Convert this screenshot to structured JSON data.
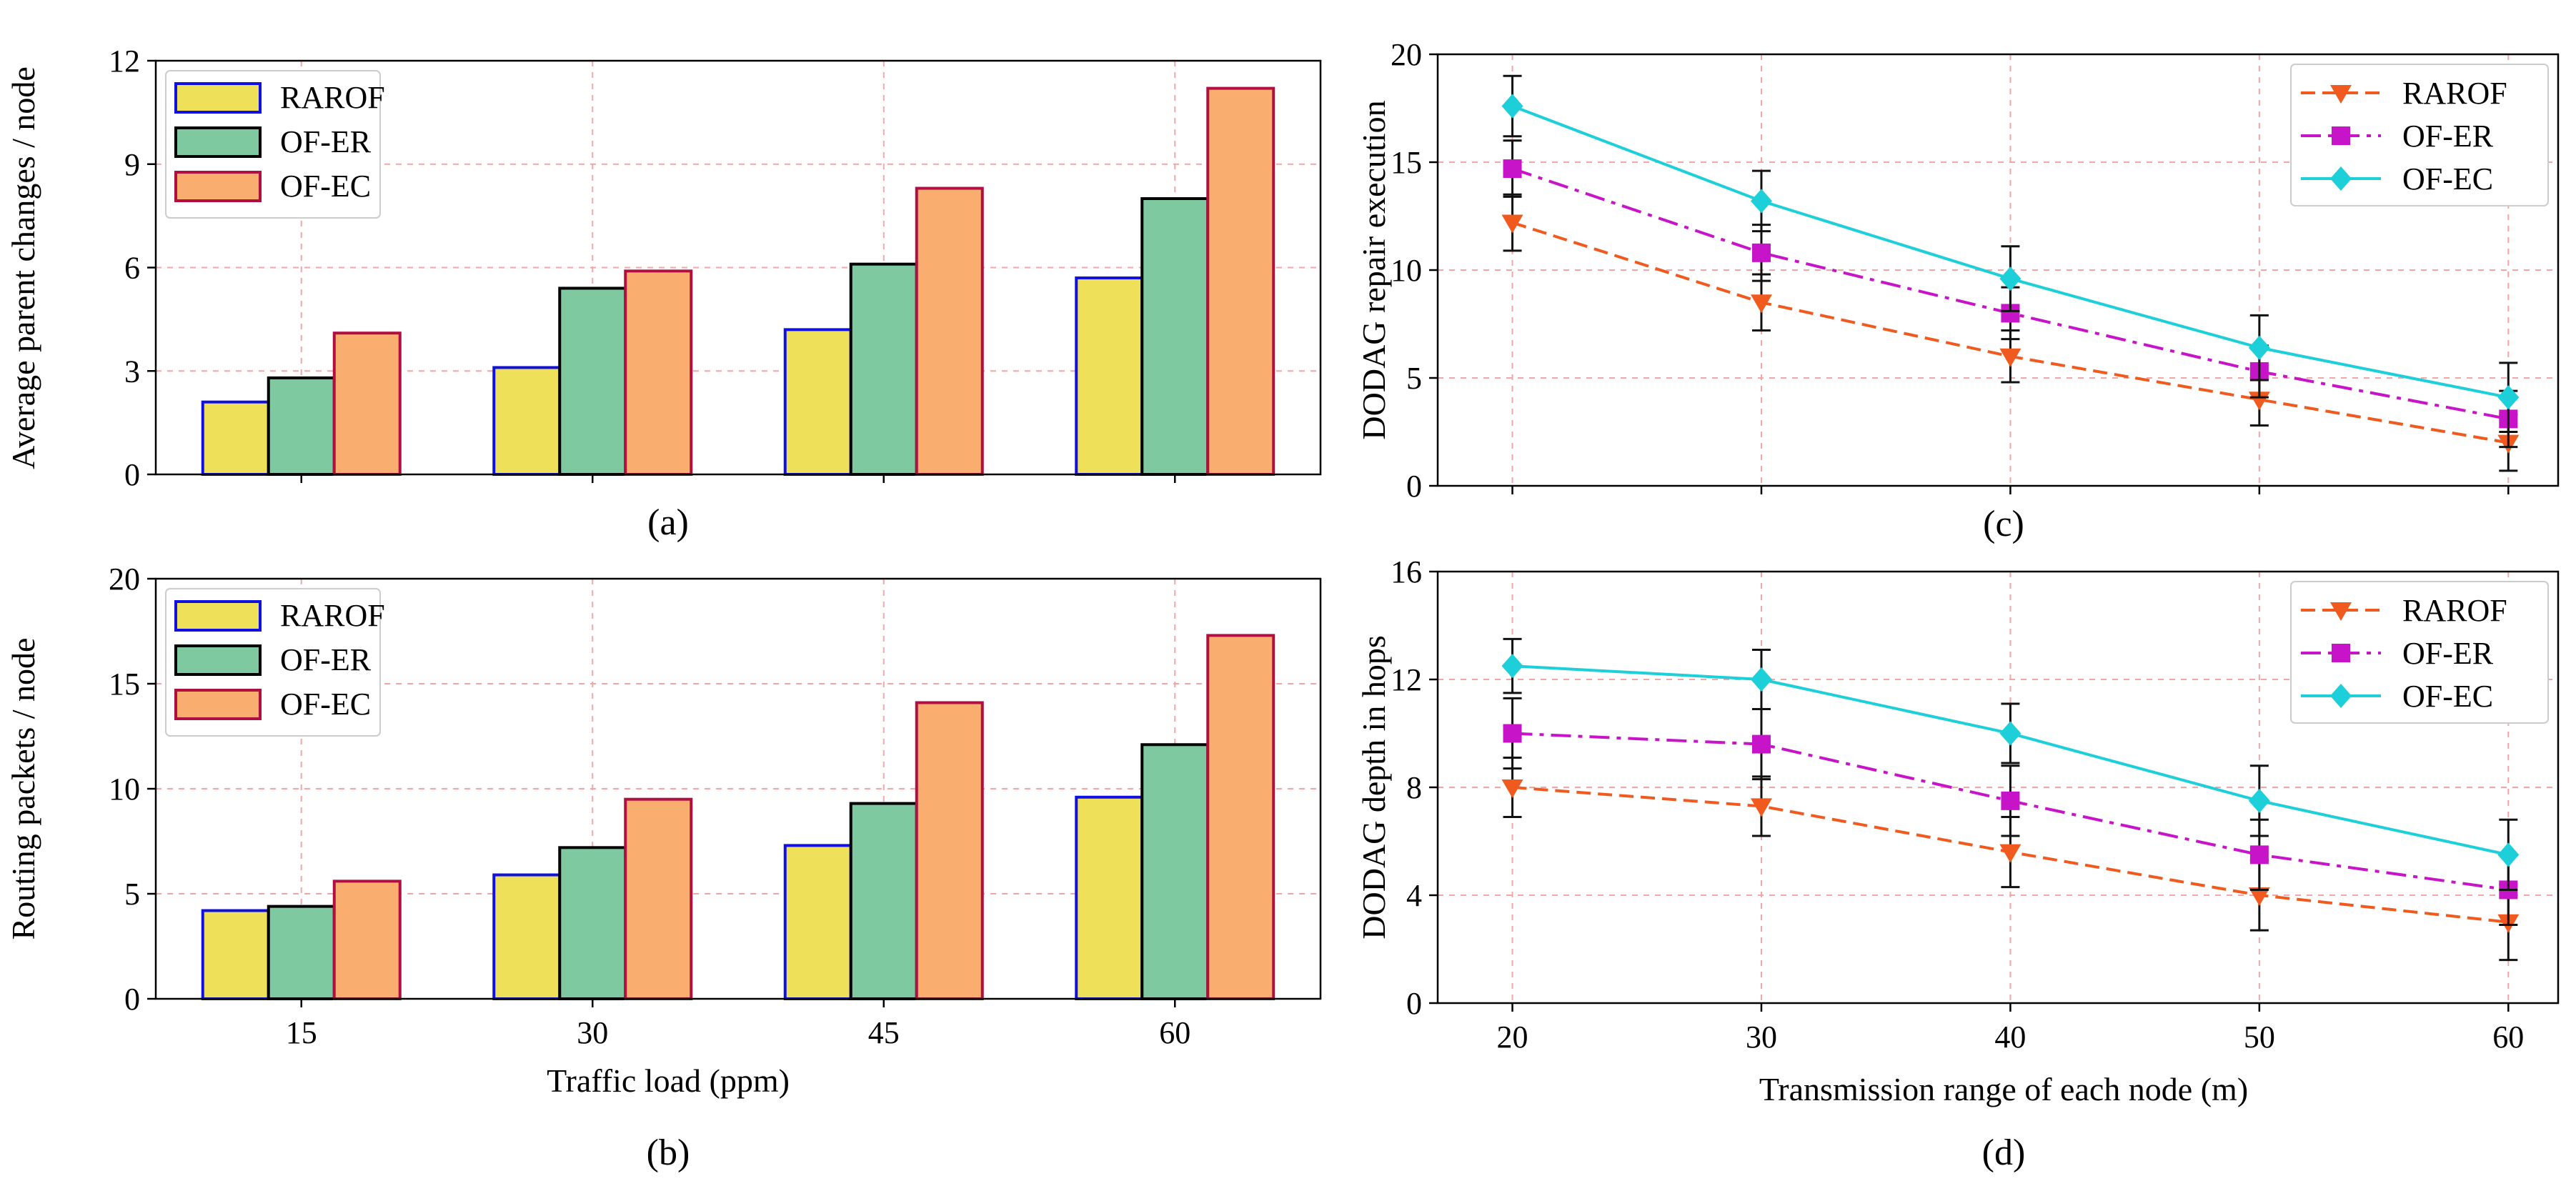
{
  "colors": {
    "RAROF_fill": "#efe05a",
    "RAROF_edge": "#1010e0",
    "OFER_fill": "#7ec9a0",
    "OFER_edge": "#000000",
    "OFEC_fill": "#f9ad6e",
    "OFEC_edge": "#b01040",
    "RAROF_line": "#f05a1e",
    "OFER_line": "#c814c8",
    "OFEC_line": "#1ccfd8"
  },
  "chart_data": [
    {
      "id": "a",
      "type": "bar",
      "caption": "(a)",
      "categories": [
        "15",
        "30",
        "45",
        "60"
      ],
      "series": [
        {
          "name": "RAROF",
          "values": [
            2.1,
            3.1,
            4.2,
            5.7
          ]
        },
        {
          "name": "OF-ER",
          "values": [
            2.8,
            5.4,
            6.1,
            8.0
          ]
        },
        {
          "name": "OF-EC",
          "values": [
            4.1,
            5.9,
            8.3,
            11.2
          ]
        }
      ],
      "xlabel": "",
      "ylabel": "Average parent changes / node",
      "ylim": [
        0,
        12
      ],
      "yticks": [
        "0",
        "3",
        "6",
        "9",
        "12"
      ],
      "grid": true,
      "legend": "top-left"
    },
    {
      "id": "b",
      "type": "bar",
      "caption": "(b)",
      "categories": [
        "15",
        "30",
        "45",
        "60"
      ],
      "series": [
        {
          "name": "RAROF",
          "values": [
            4.2,
            5.9,
            7.3,
            9.6
          ]
        },
        {
          "name": "OF-ER",
          "values": [
            4.4,
            7.2,
            9.3,
            12.1
          ]
        },
        {
          "name": "OF-EC",
          "values": [
            5.6,
            9.5,
            14.1,
            17.3
          ]
        }
      ],
      "xlabel": "Traffic load (ppm)",
      "ylabel": "Routing packets / node",
      "ylim": [
        0,
        20
      ],
      "yticks": [
        "0",
        "5",
        "10",
        "15",
        "20"
      ],
      "grid": true,
      "legend": "top-left"
    },
    {
      "id": "c",
      "type": "line",
      "caption": "(c)",
      "x": [
        20,
        30,
        40,
        50,
        60
      ],
      "series": [
        {
          "name": "RAROF",
          "values": [
            12.2,
            8.5,
            6.0,
            4.0,
            2.0
          ],
          "err": [
            1.3,
            1.3,
            1.2,
            1.2,
            1.3
          ]
        },
        {
          "name": "OF-ER",
          "values": [
            14.7,
            10.8,
            8.0,
            5.3,
            3.1
          ],
          "err": [
            1.3,
            1.3,
            1.2,
            1.2,
            1.3
          ]
        },
        {
          "name": "OF-EC",
          "values": [
            17.6,
            13.2,
            9.6,
            6.4,
            4.1
          ],
          "err": [
            1.4,
            1.4,
            1.5,
            1.5,
            1.6
          ]
        }
      ],
      "xlabel": "",
      "ylabel": "DODAG repair execution",
      "xlim": [
        17,
        62
      ],
      "ylim": [
        0,
        20
      ],
      "yticks": [
        "0",
        "5",
        "10",
        "15",
        "20"
      ],
      "grid": true,
      "legend": "top-right"
    },
    {
      "id": "d",
      "type": "line",
      "caption": "(d)",
      "x": [
        20,
        30,
        40,
        50,
        60
      ],
      "xticks": [
        "20",
        "30",
        "40",
        "50",
        "60"
      ],
      "series": [
        {
          "name": "RAROF",
          "values": [
            8.0,
            7.3,
            5.6,
            4.0,
            3.0
          ],
          "err": [
            1.1,
            1.1,
            1.3,
            1.3,
            1.4
          ]
        },
        {
          "name": "OF-ER",
          "values": [
            10.0,
            9.6,
            7.5,
            5.5,
            4.2
          ],
          "err": [
            1.3,
            1.3,
            1.3,
            1.3,
            1.3
          ]
        },
        {
          "name": "OF-EC",
          "values": [
            12.5,
            12.0,
            10.0,
            7.5,
            5.5
          ],
          "err": [
            1.0,
            1.1,
            1.1,
            1.3,
            1.3
          ]
        }
      ],
      "xlabel": "Transmission range of each node (m)",
      "ylabel": "DODAG depth in hops",
      "xlim": [
        17,
        62
      ],
      "ylim": [
        0,
        16
      ],
      "yticks": [
        "0",
        "4",
        "8",
        "12",
        "16"
      ],
      "grid": true,
      "legend": "top-right"
    }
  ]
}
